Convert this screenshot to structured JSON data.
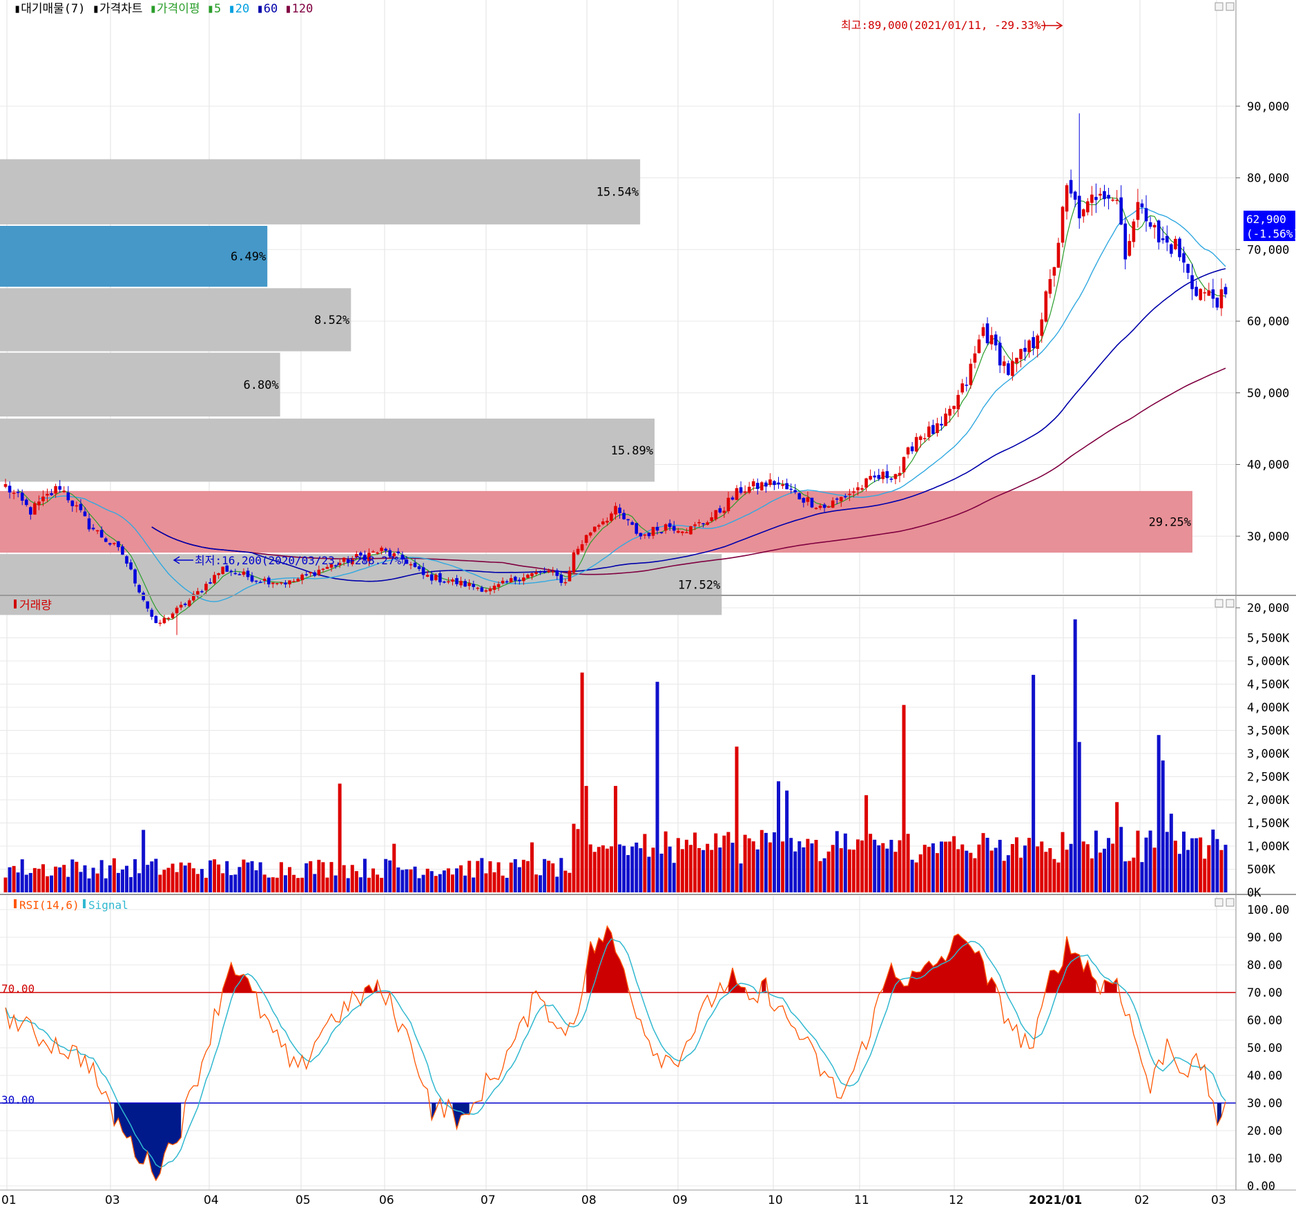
{
  "legend_top": {
    "items": [
      {
        "label": "대기매물(7)",
        "color": "#000000"
      },
      {
        "label": "가격차트",
        "color": "#000000"
      },
      {
        "label": "가격이평",
        "color": "#2a9d2a"
      },
      {
        "label": "5",
        "color": "#2a9d2a"
      },
      {
        "label": "20",
        "color": "#00a0e0"
      },
      {
        "label": "60",
        "color": "#0000aa"
      },
      {
        "label": "120",
        "color": "#800040"
      }
    ]
  },
  "legend_volume": {
    "label": "거래량",
    "color": "#d00000"
  },
  "legend_rsi": {
    "rsi_label": "RSI(14,6)",
    "signal_label": "Signal",
    "rsi_color": "#ff5500",
    "signal_color": "#30b8d0"
  },
  "annotations": {
    "high": "최고:89,000(2021/01/11, -29.33%)",
    "low": "최저:16,200(2020/03/23, +288.27%)",
    "current_price": "62,900",
    "current_change": "(-1.56%)"
  },
  "rsi_levels": {
    "upper_label": "70.00",
    "lower_label": "30.00"
  },
  "chart_data": [
    {
      "type": "candlestick",
      "ylim": [
        9000,
        94500
      ],
      "y_ticks": [
        "90,000",
        "80,000",
        "70,000",
        "60,000",
        "50,000",
        "40,000",
        "30,000",
        "20,000"
      ],
      "x_ticks": [
        "01",
        "03",
        "04",
        "05",
        "06",
        "07",
        "08",
        "09",
        "10",
        "11",
        "12",
        "2021/01",
        "02",
        "03"
      ],
      "volume_profile": [
        {
          "pct": "15.54%",
          "value": 15.54,
          "lo": 73500,
          "hi": 82600,
          "highlight": false
        },
        {
          "pct": "6.49%",
          "value": 6.49,
          "lo": 64800,
          "hi": 73300,
          "highlight": "blue"
        },
        {
          "pct": "8.52%",
          "value": 8.52,
          "lo": 55800,
          "hi": 64600,
          "highlight": false
        },
        {
          "pct": "6.80%",
          "value": 6.8,
          "lo": 46700,
          "hi": 55600,
          "highlight": false
        },
        {
          "pct": "15.89%",
          "value": 15.89,
          "lo": 37600,
          "hi": 46400,
          "highlight": false
        },
        {
          "pct": "29.25%",
          "value": 29.25,
          "lo": 27700,
          "hi": 36300,
          "highlight": "red"
        },
        {
          "pct": "17.52%",
          "value": 17.52,
          "lo": 19000,
          "hi": 27500,
          "highlight": false
        }
      ],
      "close_anchors": [
        [
          0,
          37000
        ],
        [
          6,
          33500
        ],
        [
          13,
          37000
        ],
        [
          20,
          31500
        ],
        [
          28,
          27500
        ],
        [
          36,
          17500
        ],
        [
          44,
          21000
        ],
        [
          52,
          25500
        ],
        [
          60,
          24000
        ],
        [
          68,
          23500
        ],
        [
          76,
          25500
        ],
        [
          84,
          27000
        ],
        [
          90,
          28000
        ],
        [
          96,
          26500
        ],
        [
          100,
          24500
        ],
        [
          108,
          23500
        ],
        [
          116,
          22500
        ],
        [
          124,
          24500
        ],
        [
          130,
          25000
        ],
        [
          134,
          23500
        ],
        [
          136,
          27500
        ],
        [
          141,
          31500
        ],
        [
          146,
          33500
        ],
        [
          152,
          30000
        ],
        [
          158,
          31500
        ],
        [
          164,
          31000
        ],
        [
          170,
          33000
        ],
        [
          176,
          36500
        ],
        [
          184,
          37500
        ],
        [
          190,
          35500
        ],
        [
          196,
          34000
        ],
        [
          202,
          36000
        ],
        [
          208,
          38000
        ],
        [
          214,
          39000
        ],
        [
          218,
          44000
        ],
        [
          224,
          45000
        ],
        [
          230,
          51500
        ],
        [
          234,
          59000
        ],
        [
          240,
          53000
        ],
        [
          246,
          57000
        ],
        [
          250,
          65000
        ],
        [
          254,
          78000
        ],
        [
          258,
          74500
        ],
        [
          262,
          79000
        ],
        [
          266,
          77000
        ],
        [
          268,
          70000
        ],
        [
          272,
          77000
        ],
        [
          276,
          71000
        ],
        [
          280,
          70500
        ],
        [
          284,
          65000
        ],
        [
          288,
          63500
        ],
        [
          292,
          62900
        ]
      ],
      "high_point": {
        "value": 89000,
        "index": 257
      },
      "low_point": {
        "value": 16200,
        "index": 41
      },
      "moving_averages": [
        "5",
        "20",
        "60",
        "120"
      ],
      "volume_spikes": [
        [
          33,
          1350
        ],
        [
          80,
          2350
        ],
        [
          93,
          1050
        ],
        [
          126,
          1080
        ],
        [
          138,
          4750
        ],
        [
          139,
          2300
        ],
        [
          146,
          2300
        ],
        [
          156,
          4550
        ],
        [
          175,
          3150
        ],
        [
          185,
          2400
        ],
        [
          187,
          2200
        ],
        [
          206,
          2100
        ],
        [
          215,
          4050
        ],
        [
          246,
          4700
        ],
        [
          256,
          5900
        ],
        [
          257,
          3250
        ],
        [
          266,
          1950
        ],
        [
          276,
          3400
        ],
        [
          277,
          2850
        ],
        [
          279,
          1700
        ]
      ]
    },
    {
      "type": "bar",
      "series_label": "거래량",
      "ylim": [
        0,
        6000
      ],
      "y_ticks": [
        "5,500K",
        "5,000K",
        "4,500K",
        "4,000K",
        "3,500K",
        "3,000K",
        "2,500K",
        "2,000K",
        "1,500K",
        "1,000K",
        "500K",
        "0K"
      ]
    },
    {
      "type": "line",
      "series": [
        {
          "name": "RSI(14,6)"
        },
        {
          "name": "Signal"
        }
      ],
      "ylim": [
        0,
        100
      ],
      "y_ticks": [
        "100.00",
        "90.00",
        "80.00",
        "70.00",
        "60.00",
        "50.00",
        "40.00",
        "30.00",
        "20.00",
        "10.00",
        "0.00"
      ],
      "rsi_anchors": [
        [
          0,
          62
        ],
        [
          8,
          54
        ],
        [
          14,
          50
        ],
        [
          20,
          45
        ],
        [
          24,
          30
        ],
        [
          30,
          15
        ],
        [
          36,
          5
        ],
        [
          42,
          22
        ],
        [
          48,
          50
        ],
        [
          54,
          82
        ],
        [
          58,
          72
        ],
        [
          64,
          55
        ],
        [
          70,
          40
        ],
        [
          76,
          58
        ],
        [
          82,
          65
        ],
        [
          88,
          72
        ],
        [
          92,
          66
        ],
        [
          98,
          48
        ],
        [
          102,
          28
        ],
        [
          106,
          28
        ],
        [
          110,
          22
        ],
        [
          114,
          35
        ],
        [
          118,
          42
        ],
        [
          124,
          58
        ],
        [
          128,
          72
        ],
        [
          132,
          55
        ],
        [
          136,
          60
        ],
        [
          140,
          85
        ],
        [
          144,
          92
        ],
        [
          148,
          78
        ],
        [
          152,
          60
        ],
        [
          156,
          48
        ],
        [
          160,
          45
        ],
        [
          164,
          55
        ],
        [
          170,
          70
        ],
        [
          174,
          75
        ],
        [
          178,
          65
        ],
        [
          182,
          72
        ],
        [
          186,
          62
        ],
        [
          190,
          55
        ],
        [
          196,
          40
        ],
        [
          200,
          32
        ],
        [
          204,
          45
        ],
        [
          208,
          62
        ],
        [
          212,
          80
        ],
        [
          216,
          74
        ],
        [
          220,
          77
        ],
        [
          226,
          85
        ],
        [
          230,
          92
        ],
        [
          234,
          78
        ],
        [
          238,
          66
        ],
        [
          242,
          55
        ],
        [
          246,
          50
        ],
        [
          250,
          75
        ],
        [
          254,
          87
        ],
        [
          258,
          82
        ],
        [
          262,
          72
        ],
        [
          266,
          75
        ],
        [
          270,
          55
        ],
        [
          274,
          35
        ],
        [
          278,
          52
        ],
        [
          282,
          42
        ],
        [
          286,
          44
        ],
        [
          288,
          35
        ],
        [
          290,
          25
        ],
        [
          292,
          26
        ]
      ]
    }
  ]
}
